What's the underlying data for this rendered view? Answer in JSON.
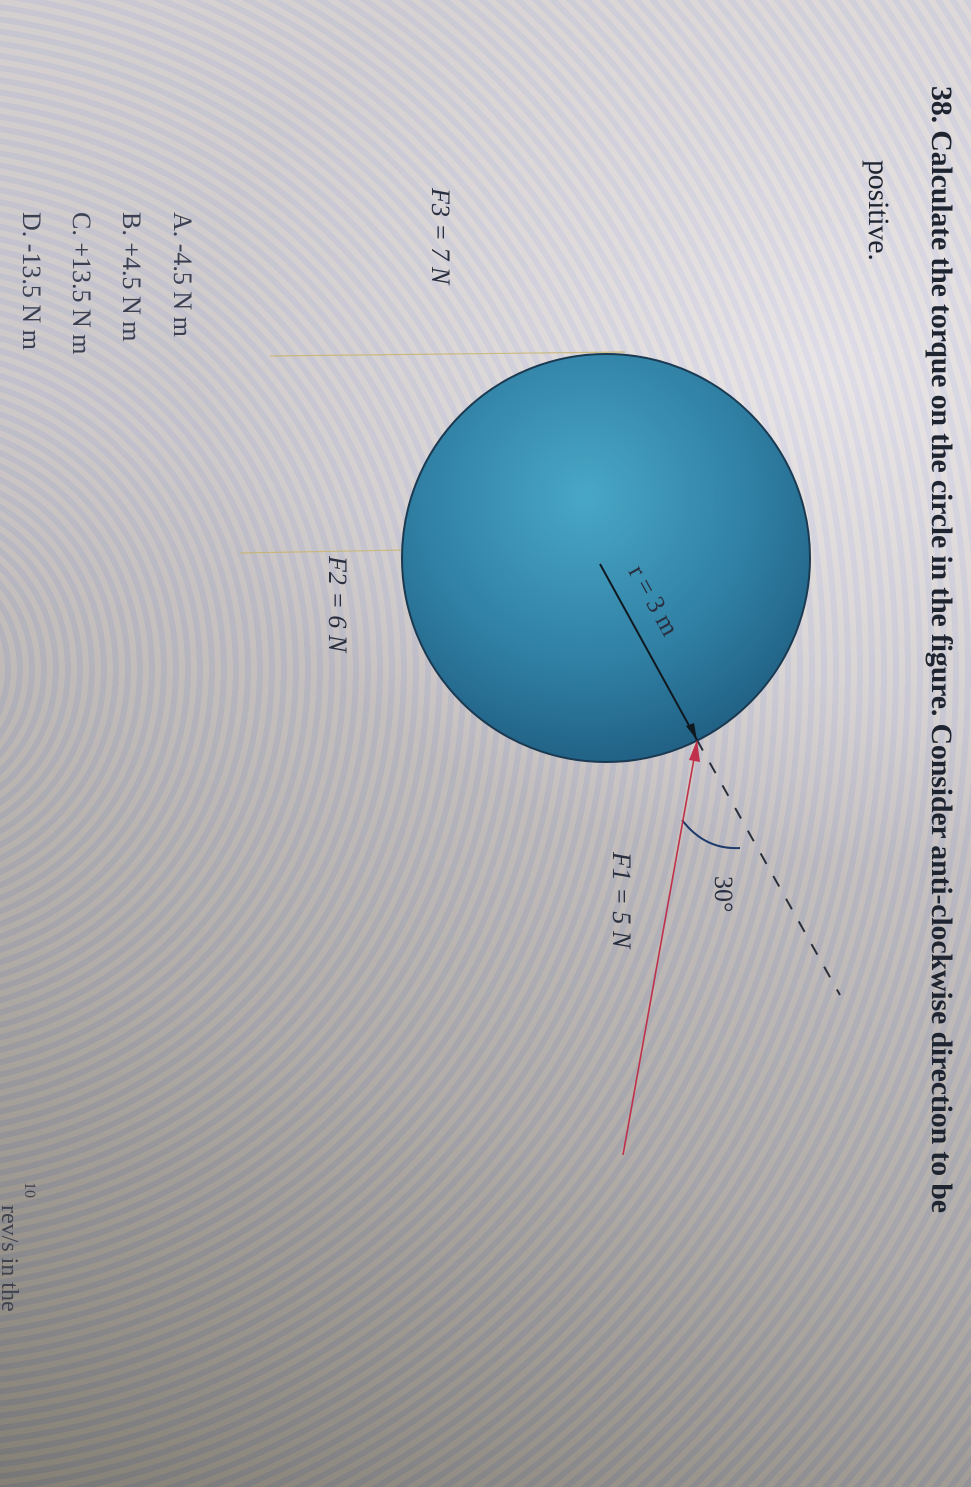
{
  "question": {
    "number": "38.",
    "text_line1": "Calculate the torque on the circle in the figure. Consider anti-clockwise direction to be",
    "text_line2": "positive."
  },
  "figure": {
    "radius_label": "r = 3 m",
    "angle_label": "30°",
    "f1_label": "F1 = 5 N",
    "f2_label": "F2 = 6 N",
    "f3_label": "F3 = 7 N",
    "circle_color": "#2f7fa3",
    "f1_color": "#c0304a"
  },
  "options": [
    {
      "label": "A. -4.5 N m"
    },
    {
      "label": "B. +4.5 N m"
    },
    {
      "label": "C. +13.5 N m"
    },
    {
      "label": "D. -13.5 N m"
    }
  ],
  "next_question_fragment": {
    "fraction_numerator": "10",
    "text": "rev/s in the"
  }
}
